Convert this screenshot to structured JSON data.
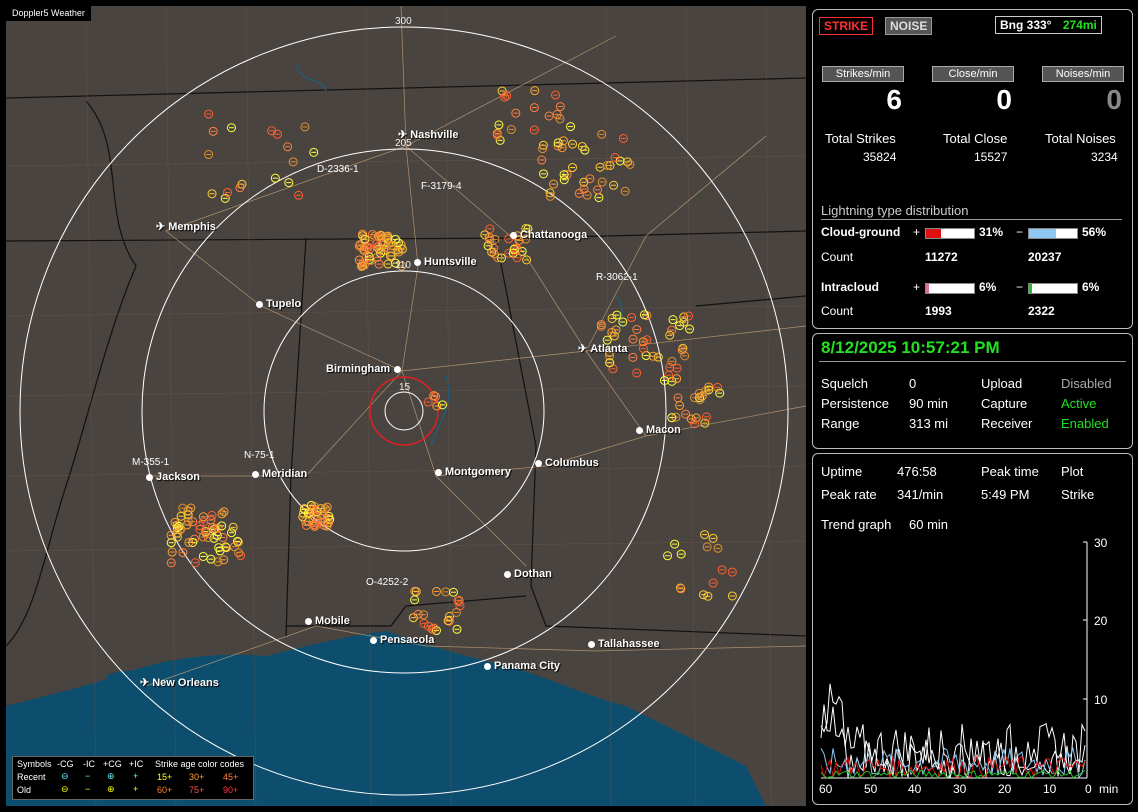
{
  "app": {
    "title": "Doppler5 Weather"
  },
  "map": {
    "range_rings": [
      "300",
      "205",
      "110",
      "15"
    ],
    "cities": [
      {
        "name": "Nashville",
        "kind": "airport"
      },
      {
        "name": "Memphis",
        "kind": "airport"
      },
      {
        "name": "Chattanooga",
        "kind": "city"
      },
      {
        "name": "Huntsville",
        "kind": "city"
      },
      {
        "name": "Tupelo",
        "kind": "city"
      },
      {
        "name": "Atlanta",
        "kind": "airport"
      },
      {
        "name": "Birmingham",
        "kind": "city"
      },
      {
        "name": "Macon",
        "kind": "city"
      },
      {
        "name": "Jackson",
        "kind": "city"
      },
      {
        "name": "Meridian",
        "kind": "city"
      },
      {
        "name": "Montgomery",
        "kind": "city"
      },
      {
        "name": "Columbus",
        "kind": "city"
      },
      {
        "name": "Dothan",
        "kind": "city"
      },
      {
        "name": "Mobile",
        "kind": "city"
      },
      {
        "name": "Pensacola",
        "kind": "city"
      },
      {
        "name": "Tallahassee",
        "kind": "city"
      },
      {
        "name": "Panama City",
        "kind": "city"
      },
      {
        "name": "New Orleans",
        "kind": "airport"
      }
    ],
    "stations": [
      "D-2336-1",
      "F-3179-4",
      "R-3062-1",
      "M-355-1",
      "N-75-1",
      "O-4252-2"
    ],
    "legend": {
      "symbols_label": "Symbols",
      "headers": [
        "-CG",
        "-IC",
        "+CG",
        "+IC"
      ],
      "age_label": "Strike age color codes",
      "recent_label": "Recent",
      "old_label": "Old",
      "recent_ages": [
        "15+",
        "30+",
        "45+"
      ],
      "old_ages": [
        "60+",
        "75+",
        "90+"
      ]
    }
  },
  "top": {
    "strike_button": "STRIKE",
    "noise_button": "NOISE",
    "bearing": "Bng 333°",
    "distance": "274mi",
    "rate_headers": [
      "Strikes/min",
      "Close/min",
      "Noises/min"
    ],
    "rate_values": [
      "6",
      "0",
      "0"
    ],
    "total_labels": [
      "Total Strikes",
      "Total Close",
      "Total Noises"
    ],
    "total_values": [
      "35824",
      "15527",
      "3234"
    ],
    "dist_title": "Lightning type distribution",
    "cloud_ground_label": "Cloud-ground",
    "intracloud_label": "Intracloud",
    "count_label": "Count",
    "plus": "+",
    "minus": "−",
    "cg_pos_pct": "31%",
    "cg_neg_pct": "56%",
    "cg_pos_count": "11272",
    "cg_neg_count": "20237",
    "ic_pos_pct": "6%",
    "ic_neg_pct": "6%",
    "ic_pos_count": "1993",
    "ic_neg_count": "2322",
    "bars": {
      "cg_pos": 0.31,
      "cg_neg": 0.56,
      "ic_pos": 0.06,
      "ic_neg": 0.06
    }
  },
  "status": {
    "datetime": "8/12/2025 10:57:21 PM",
    "squelch_label": "Squelch",
    "squelch_value": "0",
    "persistence_label": "Persistence",
    "persistence_value": "90 min",
    "range_label": "Range",
    "range_value": "313 mi",
    "upload_label": "Upload",
    "upload_value": "Disabled",
    "capture_label": "Capture",
    "capture_value": "Active",
    "receiver_label": "Receiver",
    "receiver_value": "Enabled"
  },
  "trend": {
    "uptime_label": "Uptime",
    "uptime_value": "476:58",
    "peak_time_label": "Peak time",
    "peak_time_value": "5:49 PM",
    "plot_label": "Plot",
    "plot_value": "Strike",
    "peak_rate_label": "Peak rate",
    "peak_rate_value": "341/min",
    "trend_label": "Trend graph",
    "trend_value": "60 min",
    "y_ticks": [
      "30",
      "20",
      "10"
    ],
    "x_ticks": [
      "60",
      "50",
      "40",
      "30",
      "20",
      "10",
      "0"
    ],
    "x_unit": "min"
  },
  "colors": {
    "map_land": "#4a4440",
    "water": "#0d4e6e",
    "accent_green": "#22e022",
    "strike_red": "#ff3030",
    "bar_red": "#e01010",
    "bar_blue": "#8ec8f0",
    "bar_pink": "#e07090",
    "bar_green": "#20c020"
  }
}
